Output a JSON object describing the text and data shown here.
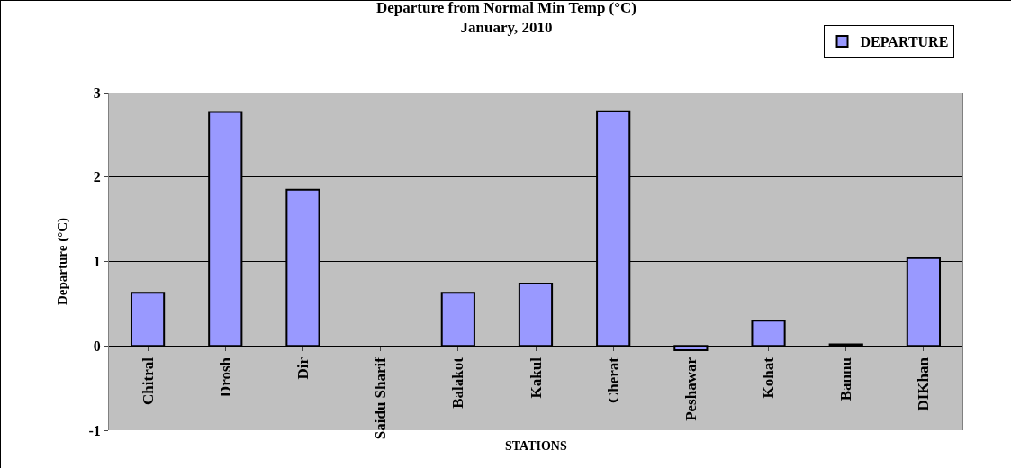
{
  "chart_data": {
    "type": "bar",
    "title": "Departure from Normal Min Temp (°C)",
    "subtitle": "January, 2010",
    "xlabel": "STATIONS",
    "ylabel": "Departure (°C)",
    "categories": [
      "Chitral",
      "Drosh",
      "Dir",
      "Saidu Sharif",
      "Balakot",
      "Kakul",
      "Cherat",
      "Peshawar",
      "Kohat",
      "Bannu",
      "DIKhan"
    ],
    "series": [
      {
        "name": "DEPARTURE",
        "color": "#9999ff",
        "values": [
          0.63,
          2.77,
          1.85,
          null,
          0.63,
          0.74,
          2.78,
          -0.05,
          0.3,
          0.02,
          1.04
        ]
      }
    ],
    "ylim": [
      -1,
      3
    ],
    "yticks": [
      -1,
      0,
      1,
      2,
      3
    ],
    "grid": "y",
    "legend": "top right"
  }
}
